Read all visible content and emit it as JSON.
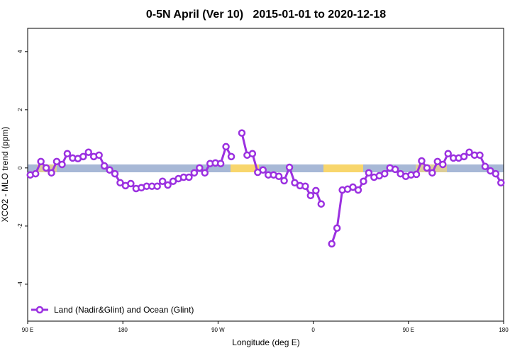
{
  "chart_data": {
    "type": "line",
    "title": "0-5N April (Ver 10)   2015-01-01 to 2020-12-18",
    "x_label": "Longitude (deg E)",
    "y_label": "XCO2 - MLO trend (ppm)",
    "x": [
      92.5,
      97.5,
      102.5,
      107.5,
      112.5,
      117.5,
      122.5,
      127.5,
      132.5,
      137.5,
      142.5,
      147.5,
      152.5,
      157.5,
      162.5,
      167.5,
      172.5,
      177.5,
      182.5,
      187.5,
      192.5,
      197.5,
      202.5,
      207.5,
      212.5,
      217.5,
      222.5,
      227.5,
      232.5,
      237.5,
      242.5,
      247.5,
      252.5,
      257.5,
      262.5,
      267.5,
      272.5,
      277.5,
      282.5,
      287.5,
      292.5,
      297.5,
      302.5,
      307.5,
      312.5,
      317.5,
      322.5,
      327.5,
      332.5,
      337.5,
      342.5,
      347.5,
      352.5,
      357.5,
      362.5,
      367.5,
      372.5,
      377.5,
      382.5,
      387.5,
      392.5,
      397.5,
      402.5,
      407.5,
      412.5,
      417.5,
      422.5,
      427.5,
      432.5,
      437.5,
      442.5,
      447.5,
      452.5,
      457.5,
      462.5,
      467.5,
      472.5,
      477.5,
      482.5,
      487.5,
      492.5,
      497.5,
      502.5,
      507.5,
      512.5,
      517.5,
      522.5,
      527.5,
      532.5,
      537.5
    ],
    "series": [
      {
        "name": "Land (Nadir&Glint) and Ocean (Glint)",
        "color": "#9b30e0",
        "values": [
          -0.24,
          -0.2,
          0.22,
          0,
          -0.17,
          0.22,
          0.12,
          0.49,
          0.34,
          0.32,
          0.39,
          0.54,
          0.39,
          0.44,
          0.07,
          -0.07,
          -0.2,
          -0.51,
          -0.61,
          -0.54,
          -0.71,
          -0.68,
          -0.63,
          -0.63,
          -0.63,
          -0.46,
          -0.59,
          -0.46,
          -0.37,
          -0.32,
          -0.32,
          -0.17,
          0,
          -0.17,
          0.15,
          0.17,
          0.15,
          0.73,
          0.39,
          null,
          1.2,
          0.44,
          0.49,
          -0.15,
          -0.07,
          -0.24,
          -0.24,
          -0.29,
          -0.44,
          0.02,
          -0.51,
          -0.61,
          -0.63,
          -0.95,
          -0.78,
          -1.24,
          null,
          -2.61,
          -2.07,
          -0.76,
          -0.73,
          -0.66,
          -0.76,
          -0.46,
          -0.17,
          -0.32,
          -0.27,
          -0.2,
          0,
          -0.05,
          -0.2,
          -0.29,
          -0.24,
          -0.22,
          0.24,
          0,
          -0.17,
          0.22,
          0.12,
          0.49,
          0.34,
          0.34,
          0.39,
          0.54,
          0.44,
          0.44,
          0.05,
          -0.1,
          -0.2,
          -0.51
        ]
      }
    ],
    "xlim": [
      90,
      540
    ],
    "xticks": [
      {
        "value": 90,
        "label": "90 E"
      },
      180,
      {
        "value": 270,
        "label": "90 W"
      },
      {
        "value": 360,
        "label": "0"
      },
      {
        "value": 450,
        "label": "90 E"
      },
      {
        "value": 540,
        "label": "180"
      }
    ],
    "ylim": [
      -5.27,
      4.8
    ],
    "yticks": [
      -4,
      -2,
      0,
      2,
      4
    ],
    "legend": "bottom-left"
  }
}
